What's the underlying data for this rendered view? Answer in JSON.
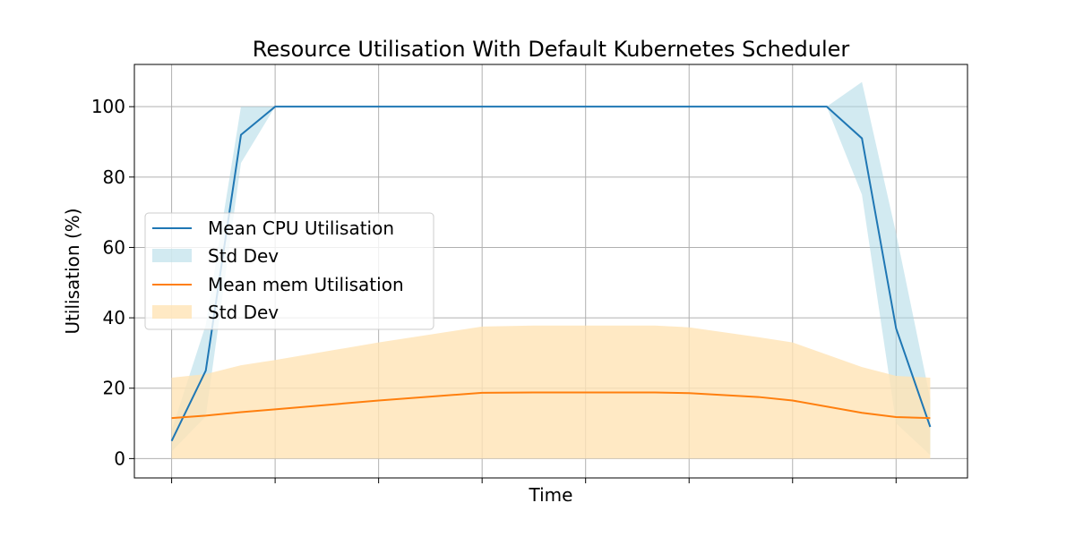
{
  "chart_data": {
    "type": "line",
    "title": "Resource Utilisation With Default Kubernetes Scheduler",
    "xlabel": "Time",
    "ylabel": "Utilisation (%)",
    "yticks": [
      0,
      20,
      40,
      60,
      80,
      100
    ],
    "ylim": [
      -5.5,
      112
    ],
    "xlim": [
      -0.36,
      7.69
    ],
    "xticks": [
      0,
      1,
      2,
      3,
      4,
      5,
      6,
      7
    ],
    "grid": true,
    "legend_position": "center-left",
    "series": [
      {
        "name": "Mean CPU Utilisation",
        "color": "#1f77b4",
        "x": [
          0,
          0.33,
          0.67,
          1,
          2,
          3,
          4,
          5,
          6,
          6.33,
          6.67,
          7,
          7.33
        ],
        "values": [
          5,
          25,
          92,
          100,
          100,
          100,
          100,
          100,
          100,
          100,
          91,
          37,
          9
        ],
        "band": {
          "name": "Std Dev",
          "color": "#add8e6",
          "lower": [
            2,
            12,
            84,
            100,
            100,
            100,
            100,
            100,
            100,
            100,
            75,
            10,
            1
          ],
          "upper": [
            8,
            38,
            100,
            100,
            100,
            100,
            100,
            100,
            100,
            100,
            107,
            64,
            17
          ]
        }
      },
      {
        "name": "Mean mem Utilisation",
        "color": "#ff7f0e",
        "x": [
          0,
          0.33,
          0.67,
          1,
          2,
          3,
          3.5,
          4,
          4.67,
          5,
          5.67,
          6,
          6.67,
          7,
          7.33
        ],
        "values": [
          11.5,
          12.2,
          13.2,
          14,
          16.5,
          18.7,
          18.8,
          18.8,
          18.8,
          18.6,
          17.5,
          16.5,
          13,
          11.8,
          11.5
        ],
        "band": {
          "name": "Std Dev",
          "color": "#ffe4b5",
          "lower": [
            0,
            0,
            0,
            0,
            0,
            0,
            0,
            0,
            0,
            0,
            0,
            0,
            0,
            0,
            0
          ],
          "upper": [
            23,
            24,
            26.5,
            28,
            33,
            37.5,
            37.8,
            37.8,
            37.8,
            37.3,
            34.5,
            33,
            26,
            23.5,
            23
          ]
        }
      }
    ]
  }
}
